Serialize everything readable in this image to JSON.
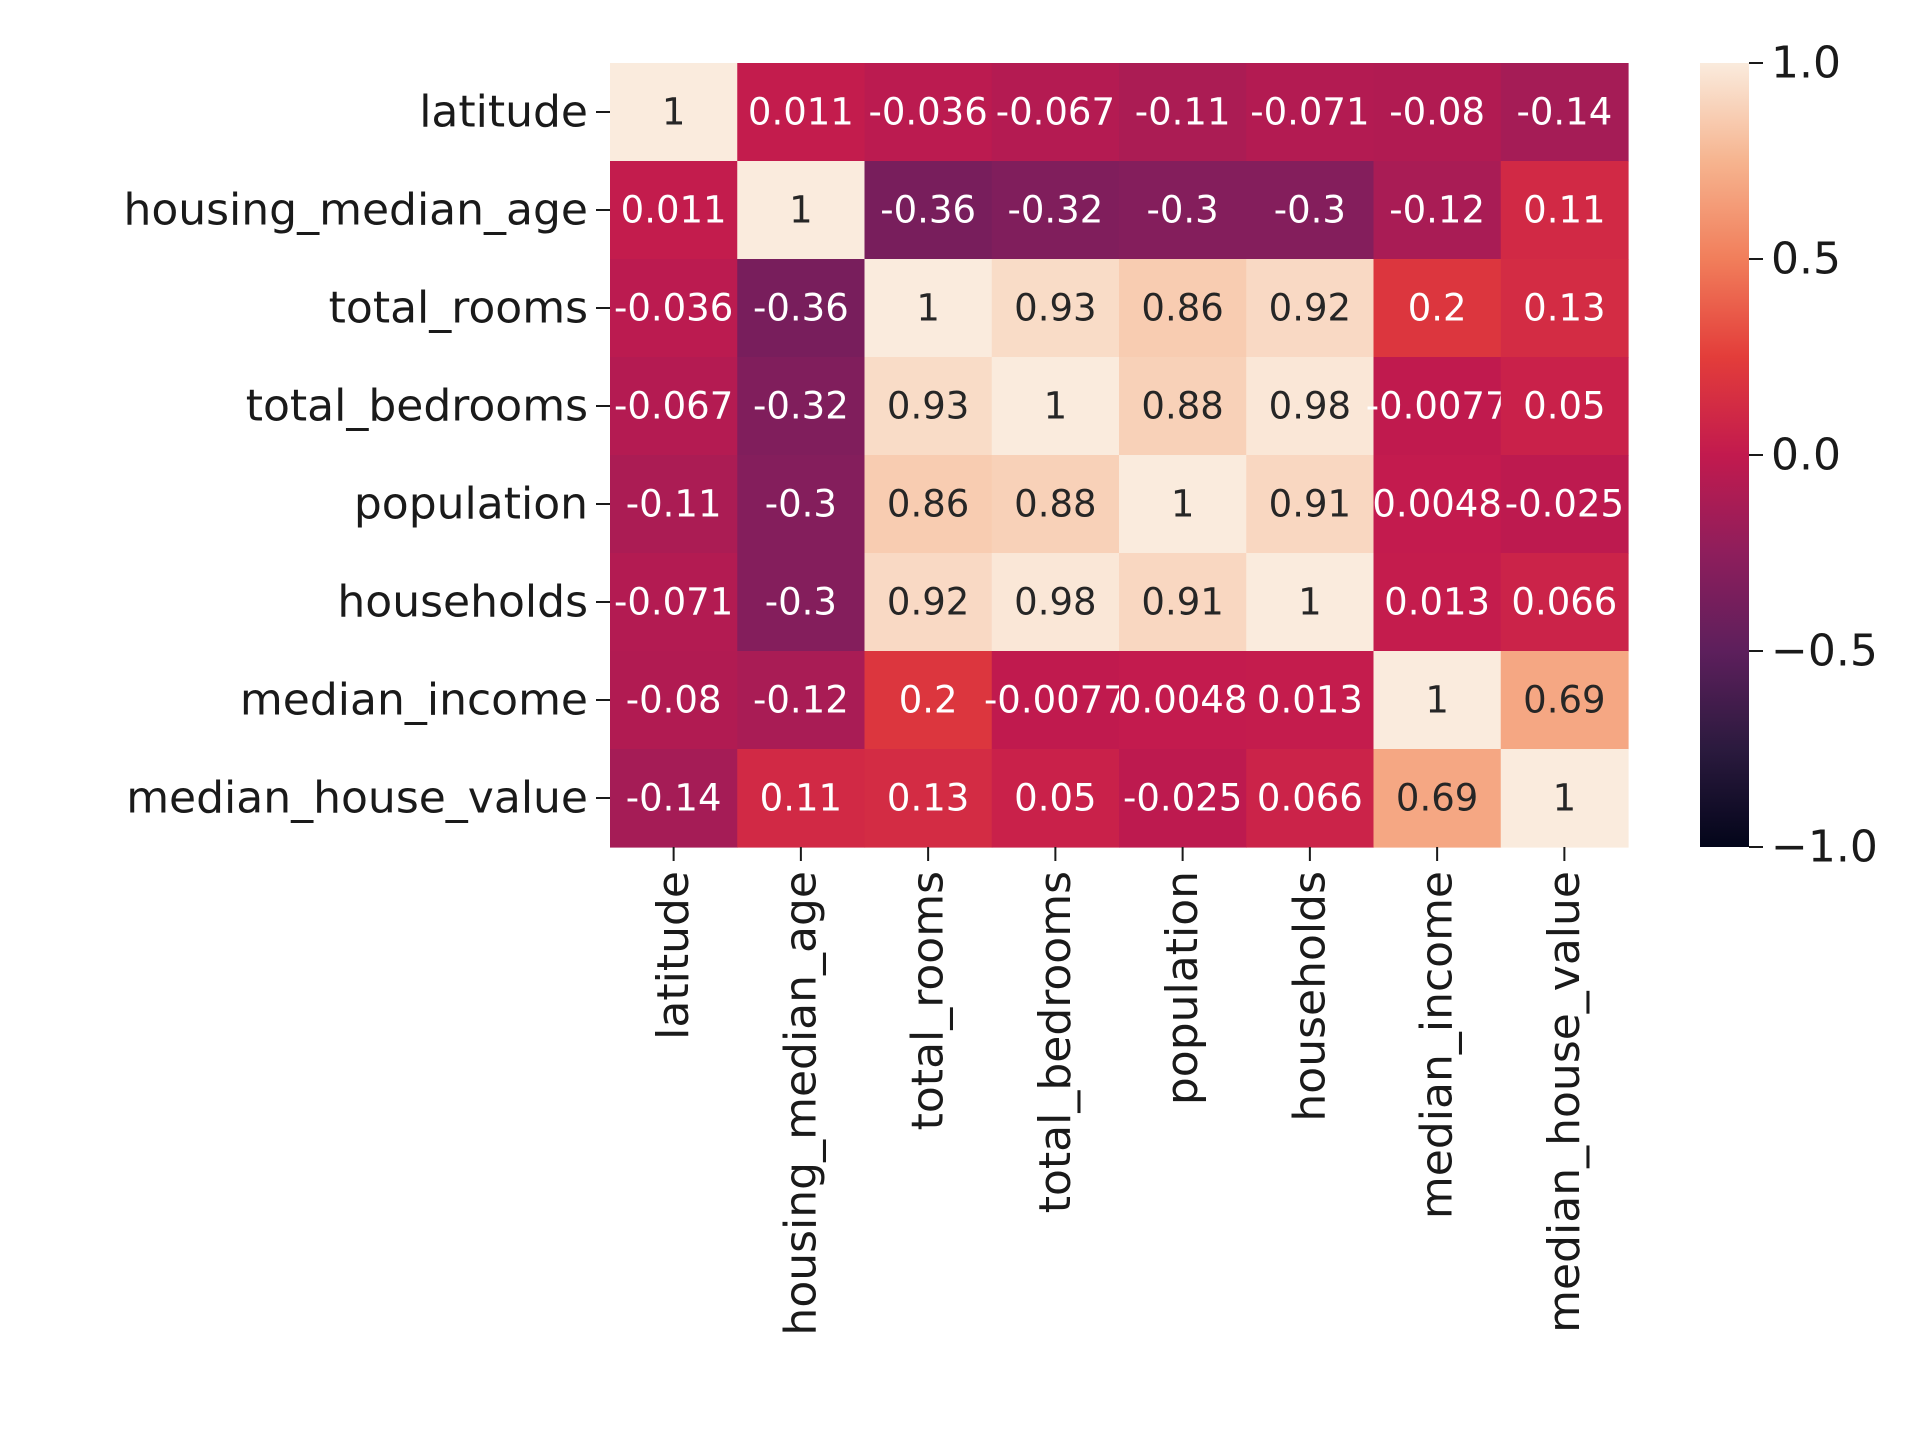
{
  "chart_data": {
    "type": "heatmap",
    "title": "",
    "xlabel": "",
    "ylabel": "",
    "rows": [
      "latitude",
      "housing_median_age",
      "total_rooms",
      "total_bedrooms",
      "population",
      "households",
      "median_income",
      "median_house_value"
    ],
    "columns": [
      "latitude",
      "housing_median_age",
      "total_rooms",
      "total_bedrooms",
      "population",
      "households",
      "median_income",
      "median_house_value"
    ],
    "values": [
      [
        1,
        0.011,
        -0.036,
        -0.067,
        -0.11,
        -0.071,
        -0.08,
        -0.14
      ],
      [
        0.011,
        1,
        -0.36,
        -0.32,
        -0.3,
        -0.3,
        -0.12,
        0.11
      ],
      [
        -0.036,
        -0.36,
        1,
        0.93,
        0.86,
        0.92,
        0.2,
        0.13
      ],
      [
        -0.067,
        -0.32,
        0.93,
        1,
        0.88,
        0.98,
        -0.0077,
        0.05
      ],
      [
        -0.11,
        -0.3,
        0.86,
        0.88,
        1,
        0.91,
        0.0048,
        -0.025
      ],
      [
        -0.071,
        -0.3,
        0.92,
        0.98,
        0.91,
        1,
        0.013,
        0.066
      ],
      [
        -0.08,
        -0.12,
        0.2,
        -0.0077,
        0.0048,
        0.013,
        1,
        0.69
      ],
      [
        -0.14,
        0.11,
        0.13,
        0.05,
        -0.025,
        0.066,
        0.69,
        1
      ]
    ],
    "vmin": -1.0,
    "vmax": 1.0,
    "colorbar": {
      "ticks": [
        1.0,
        0.5,
        0.0,
        -0.5,
        -1.0
      ],
      "tick_labels": [
        "1.0",
        "0.5",
        "0.0",
        "−0.5",
        "−1.0"
      ]
    },
    "colormap": "rocket",
    "colormap_stops": [
      "#03051a",
      "#2b1a3e",
      "#5d1f5c",
      "#8e1e5c",
      "#c21a4e",
      "#e33d3a",
      "#f17e5b",
      "#f6b48f",
      "#faebdd"
    ],
    "annotations": true
  }
}
